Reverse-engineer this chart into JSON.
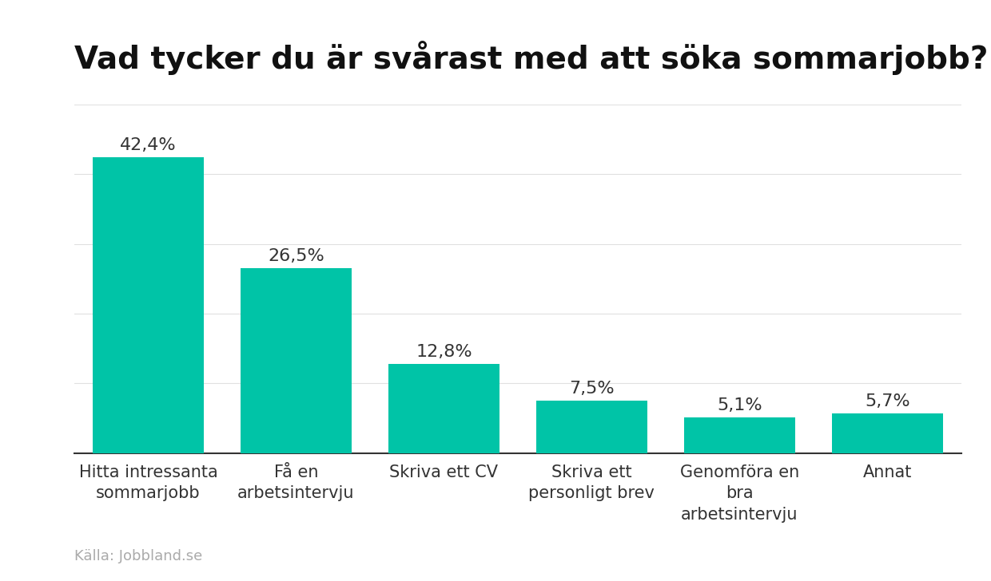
{
  "title": "Vad tycker du är svårast med att söka sommarjobb?",
  "categories": [
    "Hitta intressanta\nsommarjobb",
    "Få en\narbetsintervju",
    "Skriva ett CV",
    "Skriva ett\npersonligt brev",
    "Genomföra en\nbra\narbetsintervju",
    "Annat"
  ],
  "values": [
    42.4,
    26.5,
    12.8,
    7.5,
    5.1,
    5.7
  ],
  "labels": [
    "42,4%",
    "26,5%",
    "12,8%",
    "7,5%",
    "5,1%",
    "5,7%"
  ],
  "bar_color": "#00C4A7",
  "background_color": "#ffffff",
  "title_fontsize": 28,
  "label_fontsize": 16,
  "tick_fontsize": 15,
  "source_text": "Källa: Jobbland.se",
  "source_fontsize": 13,
  "source_color": "#aaaaaa",
  "ylim": [
    0,
    50
  ],
  "grid_color": "#e0e0e0",
  "axis_color": "#333333",
  "label_color": "#333333",
  "bar_width": 0.75
}
